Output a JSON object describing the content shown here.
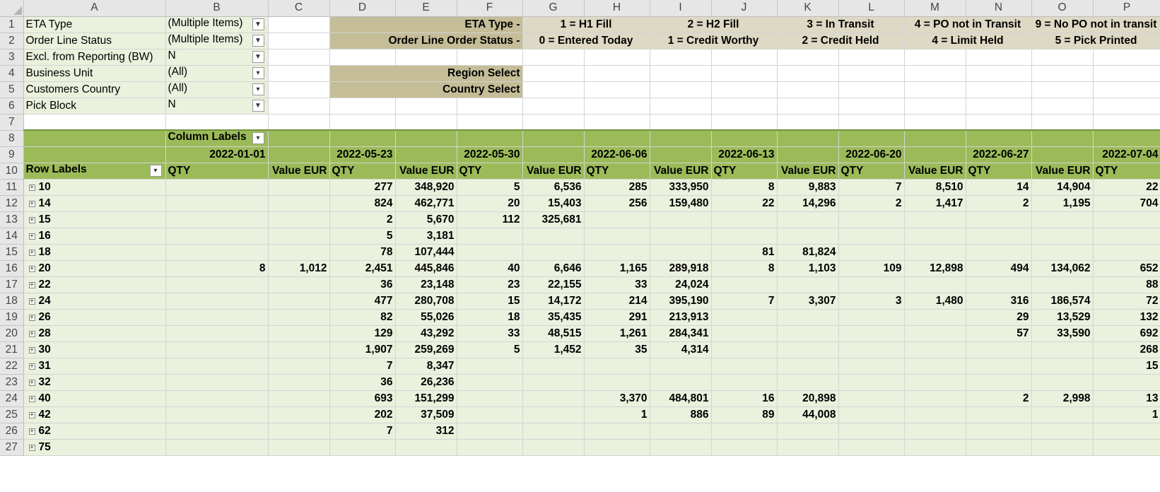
{
  "columns": [
    "A",
    "B",
    "C",
    "D",
    "E",
    "F",
    "G",
    "H",
    "I",
    "J",
    "K",
    "L",
    "M",
    "N",
    "O",
    "P"
  ],
  "filters": [
    {
      "label": "ETA Type",
      "value": "(Multiple Items)",
      "icon": "funnel-icon"
    },
    {
      "label": "Order Line Status",
      "value": "(Multiple Items)",
      "icon": "funnel-icon"
    },
    {
      "label": "Excl. from Reporting (BW)",
      "value": "N",
      "icon": "funnel-icon"
    },
    {
      "label": "Business Unit",
      "value": "(All)",
      "icon": "chevron-down-icon"
    },
    {
      "label": "Customers Country",
      "value": "(All)",
      "icon": "chevron-down-icon"
    },
    {
      "label": "Pick Block",
      "value": "N",
      "icon": "funnel-icon"
    }
  ],
  "legend": {
    "eta_label": "ETA Type -",
    "status_label": "Order Line Order Status -",
    "eta": [
      "1 = H1 Fill",
      "2 = H2 Fill",
      "3 = In Transit",
      "4 = PO not in Transit",
      "9 = No PO not in transit"
    ],
    "status": [
      "0 = Entered Today",
      "1 = Credit Worthy",
      "2 = Credit Held",
      "4 = Limit Held",
      "5 = Pick Printed"
    ],
    "region_select": "Region Select",
    "country_select": "Country Select"
  },
  "pivot": {
    "column_labels": "Column Labels",
    "row_labels": "Row Labels",
    "dates": [
      "2022-01-01",
      "2022-05-23",
      "2022-05-30",
      "2022-06-06",
      "2022-06-13",
      "2022-06-20",
      "2022-06-27",
      "2022-07-04"
    ],
    "qty_label": "QTY",
    "value_label": "Value EUR",
    "rows": [
      {
        "key": "10",
        "cells": [
          "",
          "",
          "277",
          "348,920",
          "5",
          "6,536",
          "285",
          "333,950",
          "8",
          "9,883",
          "7",
          "8,510",
          "14",
          "14,904",
          "22"
        ]
      },
      {
        "key": "14",
        "cells": [
          "",
          "",
          "824",
          "462,771",
          "20",
          "15,403",
          "256",
          "159,480",
          "22",
          "14,296",
          "2",
          "1,417",
          "2",
          "1,195",
          "704"
        ]
      },
      {
        "key": "15",
        "cells": [
          "",
          "",
          "2",
          "5,670",
          "112",
          "325,681",
          "",
          "",
          "",
          "",
          "",
          "",
          "",
          "",
          ""
        ]
      },
      {
        "key": "16",
        "cells": [
          "",
          "",
          "5",
          "3,181",
          "",
          "",
          "",
          "",
          "",
          "",
          "",
          "",
          "",
          "",
          ""
        ]
      },
      {
        "key": "18",
        "cells": [
          "",
          "",
          "78",
          "107,444",
          "",
          "",
          "",
          "",
          "81",
          "81,824",
          "",
          "",
          "",
          "",
          ""
        ]
      },
      {
        "key": "20",
        "cells": [
          "8",
          "1,012",
          "2,451",
          "445,846",
          "40",
          "6,646",
          "1,165",
          "289,918",
          "8",
          "1,103",
          "109",
          "12,898",
          "494",
          "134,062",
          "652"
        ]
      },
      {
        "key": "22",
        "cells": [
          "",
          "",
          "36",
          "23,148",
          "23",
          "22,155",
          "33",
          "24,024",
          "",
          "",
          "",
          "",
          "",
          "",
          "88"
        ]
      },
      {
        "key": "24",
        "cells": [
          "",
          "",
          "477",
          "280,708",
          "15",
          "14,172",
          "214",
          "395,190",
          "7",
          "3,307",
          "3",
          "1,480",
          "316",
          "186,574",
          "72"
        ]
      },
      {
        "key": "26",
        "cells": [
          "",
          "",
          "82",
          "55,026",
          "18",
          "35,435",
          "291",
          "213,913",
          "",
          "",
          "",
          "",
          "29",
          "13,529",
          "132"
        ]
      },
      {
        "key": "28",
        "cells": [
          "",
          "",
          "129",
          "43,292",
          "33",
          "48,515",
          "1,261",
          "284,341",
          "",
          "",
          "",
          "",
          "57",
          "33,590",
          "692"
        ]
      },
      {
        "key": "30",
        "cells": [
          "",
          "",
          "1,907",
          "259,269",
          "5",
          "1,452",
          "35",
          "4,314",
          "",
          "",
          "",
          "",
          "",
          "",
          "268"
        ]
      },
      {
        "key": "31",
        "cells": [
          "",
          "",
          "7",
          "8,347",
          "",
          "",
          "",
          "",
          "",
          "",
          "",
          "",
          "",
          "",
          "15"
        ]
      },
      {
        "key": "32",
        "cells": [
          "",
          "",
          "36",
          "26,236",
          "",
          "",
          "",
          "",
          "",
          "",
          "",
          "",
          "",
          "",
          ""
        ]
      },
      {
        "key": "40",
        "cells": [
          "",
          "",
          "693",
          "151,299",
          "",
          "",
          "3,370",
          "484,801",
          "16",
          "20,898",
          "",
          "",
          "2",
          "2,998",
          "13"
        ]
      },
      {
        "key": "42",
        "cells": [
          "",
          "",
          "202",
          "37,509",
          "",
          "",
          "1",
          "886",
          "89",
          "44,008",
          "",
          "",
          "",
          "",
          "1"
        ]
      },
      {
        "key": "62",
        "cells": [
          "",
          "",
          "7",
          "312",
          "",
          "",
          "",
          "",
          "",
          "",
          "",
          "",
          "",
          "",
          ""
        ]
      },
      {
        "key": "75",
        "cells": [
          "",
          "",
          "",
          "",
          "",
          "",
          "",
          "",
          "",
          "",
          "",
          "",
          "",
          "",
          ""
        ]
      }
    ]
  }
}
